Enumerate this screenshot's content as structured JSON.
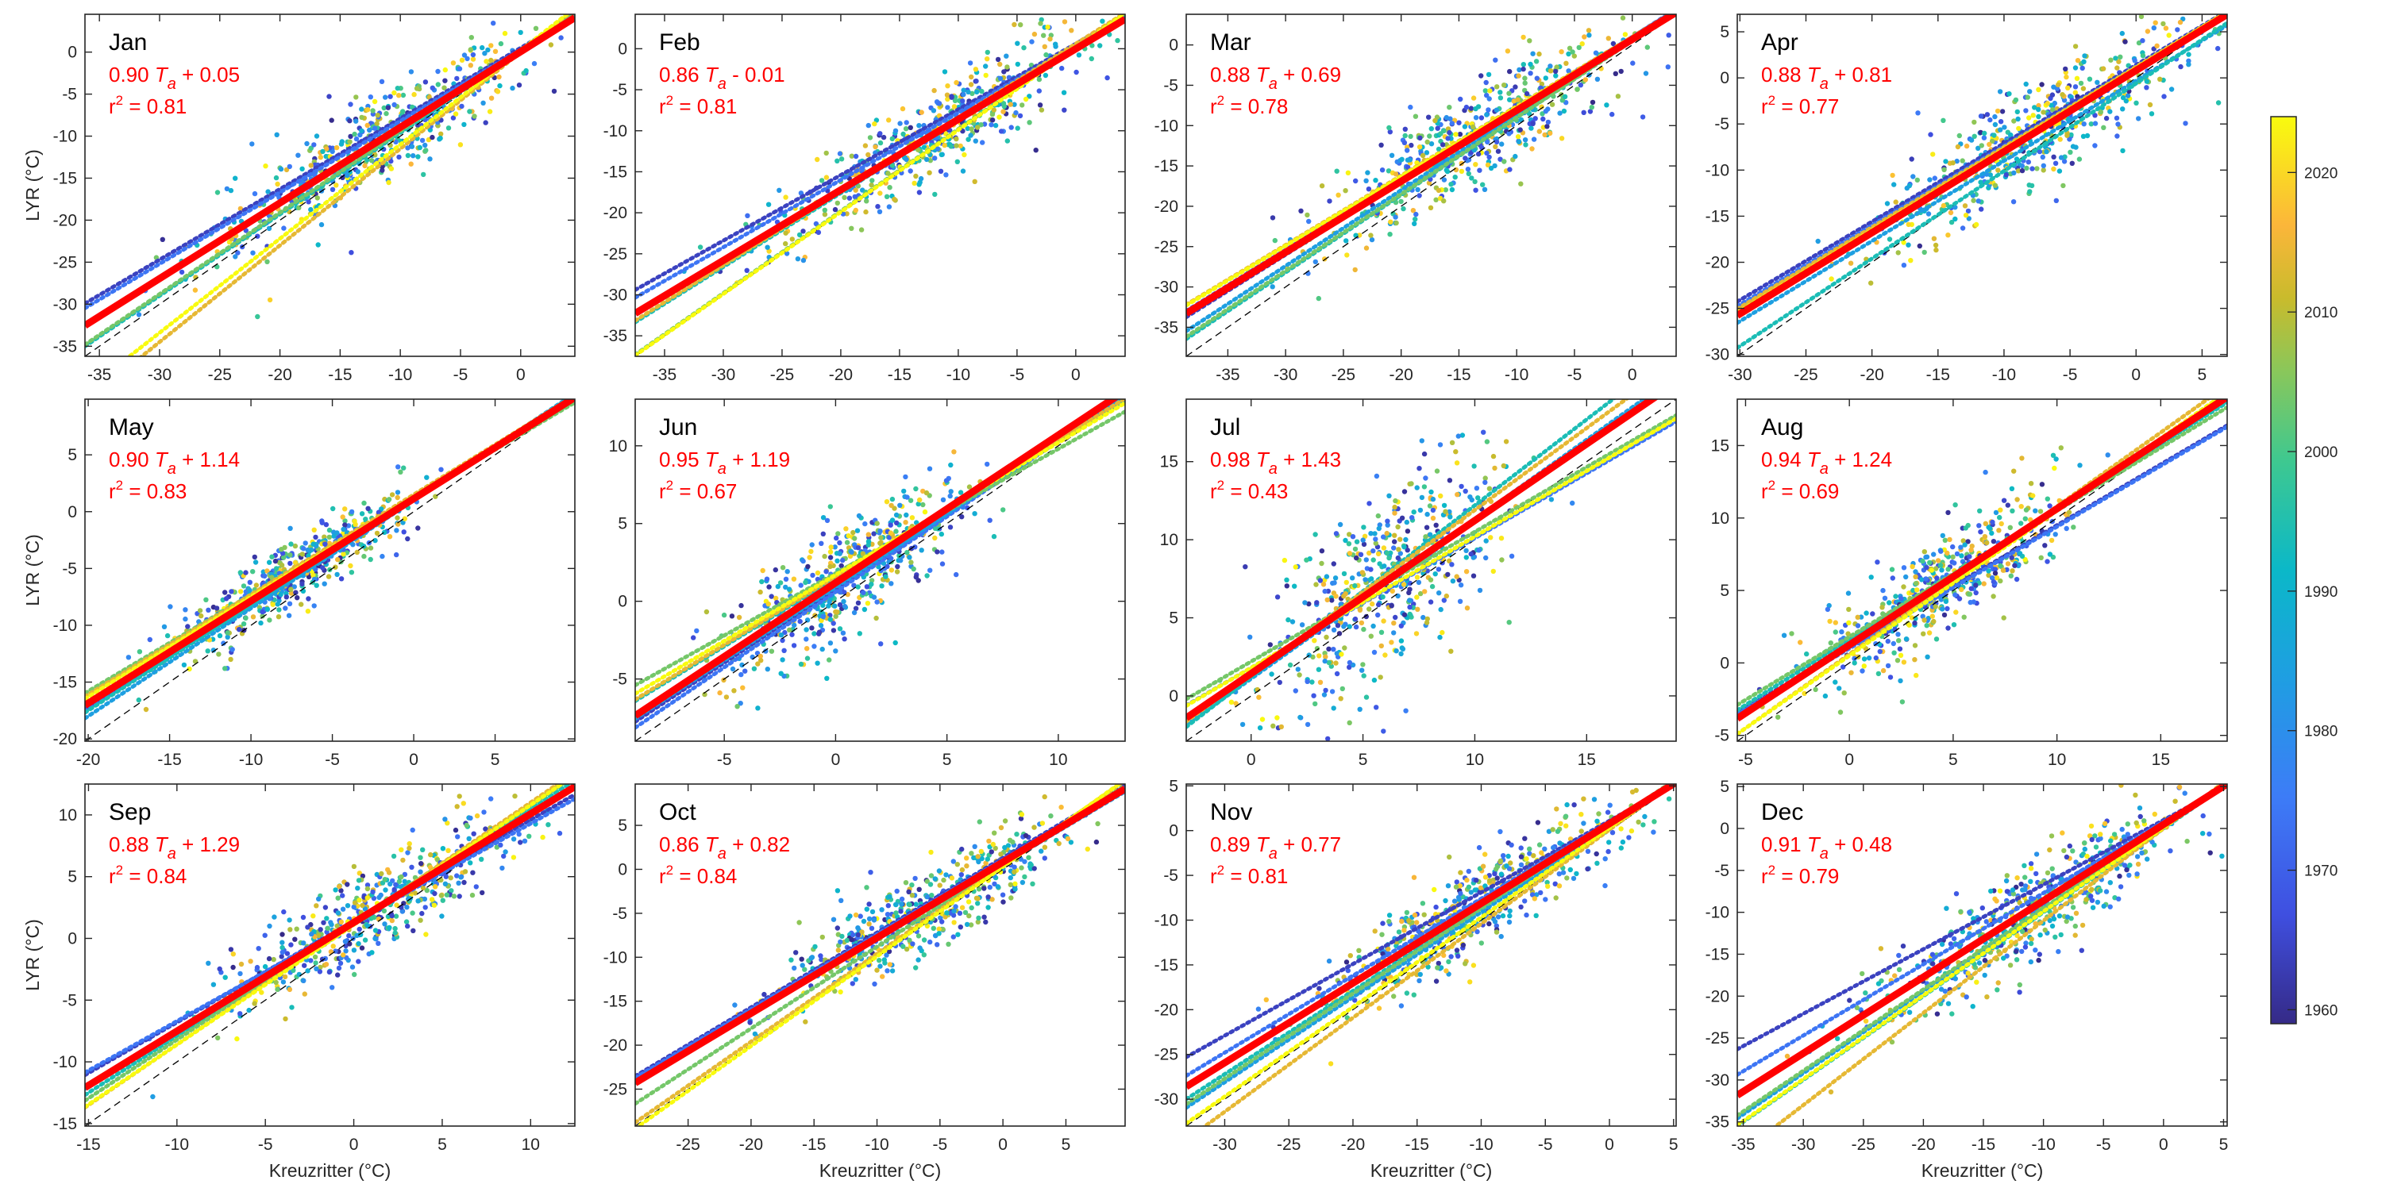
{
  "chart_data": {
    "type": "scatter",
    "description": "Monthly scatter of daily temperature at LYR vs Kreuzritter, colored by year, with overall linear fit (red), per-decade fits (dotted, colored), and 1:1 line (dashed black)",
    "xlabel": "Kreuzritter (°C)",
    "ylabel": "LYR (°C)",
    "colorbar": {
      "label": "",
      "range": [
        1959,
        2024
      ],
      "ticks": [
        1960,
        1970,
        1980,
        1990,
        2000,
        2010,
        2020
      ],
      "colormap": "parula"
    },
    "fit_color": "#ff0000",
    "one_to_one_line": "dashed black",
    "decades": [
      1960,
      1970,
      1980,
      1990,
      2000,
      2010,
      2020
    ],
    "panels": [
      {
        "month": "Jan",
        "slope": 0.9,
        "intercept": 0.05,
        "r2": 0.81,
        "eq": "0.90 T_a + 0.05",
        "sign": "+",
        "icpt_text": "0.05",
        "slope_text": "0.90",
        "r2_text": "0.81",
        "xlim": [
          -36.2,
          4.5
        ],
        "ylim": [
          -36.2,
          4.5
        ],
        "xticks": [
          -35,
          -30,
          -25,
          -20,
          -15,
          -10,
          -5,
          0
        ],
        "yticks": [
          -35,
          -30,
          -25,
          -20,
          -15,
          -10,
          -5,
          0
        ],
        "decadal_fits": [
          {
            "decade": 1960,
            "slope": 0.84,
            "intercept": 0.5
          },
          {
            "decade": 1970,
            "slope": 0.85,
            "intercept": 0.3
          },
          {
            "decade": 1980,
            "slope": 0.97,
            "intercept": 0.2
          },
          {
            "decade": 1990,
            "slope": 0.97,
            "intercept": 0.1
          },
          {
            "decade": 2000,
            "slope": 0.97,
            "intercept": 0.3
          },
          {
            "decade": 2010,
            "slope": 1.15,
            "intercept": 0.0
          },
          {
            "decade": 2020,
            "slope": 1.12,
            "intercept": 0.2
          }
        ]
      },
      {
        "month": "Feb",
        "slope": 0.86,
        "intercept": -0.01,
        "r2": 0.81,
        "sign": "-",
        "icpt_text": "0.01",
        "slope_text": "0.86",
        "r2_text": "0.81",
        "xlim": [
          -37.5,
          4.2
        ],
        "ylim": [
          -37.5,
          4.2
        ],
        "xticks": [
          -35,
          -30,
          -25,
          -20,
          -15,
          -10,
          -5,
          0
        ],
        "yticks": [
          -35,
          -30,
          -25,
          -20,
          -15,
          -10,
          -5,
          0
        ],
        "decadal_fits": [
          {
            "decade": 1960,
            "slope": 0.8,
            "intercept": 0.6
          },
          {
            "decade": 1970,
            "slope": 0.82,
            "intercept": 0.4
          },
          {
            "decade": 1980,
            "slope": 0.9,
            "intercept": 0.5
          },
          {
            "decade": 1990,
            "slope": 0.9,
            "intercept": 0.4
          },
          {
            "decade": 2000,
            "slope": 1.0,
            "intercept": 0.2
          },
          {
            "decade": 2010,
            "slope": 0.9,
            "intercept": 0.6
          },
          {
            "decade": 2020,
            "slope": 1.0,
            "intercept": 0.1
          }
        ]
      },
      {
        "month": "Mar",
        "slope": 0.88,
        "intercept": 0.69,
        "r2": 0.78,
        "sign": "+",
        "icpt_text": "0.69",
        "slope_text": "0.88",
        "r2_text": "0.78",
        "xlim": [
          -38.6,
          3.8
        ],
        "ylim": [
          -38.6,
          3.8
        ],
        "xticks": [
          -35,
          -30,
          -25,
          -20,
          -15,
          -10,
          -5,
          0
        ],
        "yticks": [
          -35,
          -30,
          -25,
          -20,
          -15,
          -10,
          -5,
          0
        ],
        "decadal_fits": [
          {
            "decade": 1960,
            "slope": 0.9,
            "intercept": 1.0
          },
          {
            "decade": 1970,
            "slope": 0.88,
            "intercept": 1.0
          },
          {
            "decade": 1980,
            "slope": 0.94,
            "intercept": 0.8
          },
          {
            "decade": 1990,
            "slope": 0.96,
            "intercept": 0.6
          },
          {
            "decade": 2000,
            "slope": 0.95,
            "intercept": 0.5
          },
          {
            "decade": 2010,
            "slope": 0.86,
            "intercept": 1.0
          },
          {
            "decade": 2020,
            "slope": 0.86,
            "intercept": 0.9
          }
        ]
      },
      {
        "month": "Apr",
        "slope": 0.88,
        "intercept": 0.81,
        "r2": 0.77,
        "sign": "+",
        "icpt_text": "0.81",
        "slope_text": "0.88",
        "r2_text": "0.77",
        "xlim": [
          -30.2,
          6.9
        ],
        "ylim": [
          -30.2,
          6.9
        ],
        "xticks": [
          -30,
          -25,
          -20,
          -15,
          -10,
          -5,
          0,
          5
        ],
        "yticks": [
          -30,
          -25,
          -20,
          -15,
          -10,
          -5,
          0,
          5
        ],
        "decadal_fits": [
          {
            "decade": 1960,
            "slope": 0.85,
            "intercept": 1.4
          },
          {
            "decade": 1970,
            "slope": 0.86,
            "intercept": 1.2
          },
          {
            "decade": 1980,
            "slope": 0.87,
            "intercept": -0.3
          },
          {
            "decade": 1990,
            "slope": 0.95,
            "intercept": -0.6
          },
          {
            "decade": 2000,
            "slope": 0.86,
            "intercept": 0.8
          },
          {
            "decade": 2010,
            "slope": 0.87,
            "intercept": 1.2
          },
          {
            "decade": 2020,
            "slope": 0.88,
            "intercept": 1.1
          }
        ]
      },
      {
        "month": "May",
        "slope": 0.9,
        "intercept": 1.14,
        "r2": 0.83,
        "sign": "+",
        "icpt_text": "1.14",
        "slope_text": "0.90",
        "r2_text": "0.83",
        "xlim": [
          -20.2,
          9.9
        ],
        "ylim": [
          -20.2,
          9.9
        ],
        "xticks": [
          -20,
          -15,
          -10,
          -5,
          0,
          5
        ],
        "yticks": [
          -20,
          -15,
          -10,
          -5,
          0,
          5
        ],
        "decadal_fits": [
          {
            "decade": 1960,
            "slope": 0.91,
            "intercept": 1.0
          },
          {
            "decade": 1970,
            "slope": 0.92,
            "intercept": 1.0
          },
          {
            "decade": 1980,
            "slope": 0.95,
            "intercept": 1.0
          },
          {
            "decade": 1990,
            "slope": 0.93,
            "intercept": 1.1
          },
          {
            "decade": 2000,
            "slope": 0.85,
            "intercept": 1.2
          },
          {
            "decade": 2010,
            "slope": 0.88,
            "intercept": 1.5
          },
          {
            "decade": 2020,
            "slope": 0.88,
            "intercept": 1.3
          }
        ]
      },
      {
        "month": "Jun",
        "slope": 0.95,
        "intercept": 1.19,
        "r2": 0.67,
        "sign": "+",
        "icpt_text": "1.19",
        "slope_text": "0.95",
        "r2_text": "0.67",
        "xlim": [
          -9.0,
          13.0
        ],
        "ylim": [
          -9.0,
          13.0
        ],
        "xticks": [
          -5,
          0,
          5,
          10
        ],
        "yticks": [
          -5,
          0,
          5,
          10
        ],
        "decadal_fits": [
          {
            "decade": 1960,
            "slope": 0.95,
            "intercept": 0.8
          },
          {
            "decade": 1970,
            "slope": 0.97,
            "intercept": 0.6
          },
          {
            "decade": 1980,
            "slope": 0.94,
            "intercept": 0.9
          },
          {
            "decade": 1990,
            "slope": 0.88,
            "intercept": 1.5
          },
          {
            "decade": 2000,
            "slope": 0.8,
            "intercept": 1.8
          },
          {
            "decade": 2010,
            "slope": 0.88,
            "intercept": 1.6
          },
          {
            "decade": 2020,
            "slope": 0.85,
            "intercept": 1.7
          }
        ]
      },
      {
        "month": "Jul",
        "slope": 0.98,
        "intercept": 1.43,
        "r2": 0.43,
        "sign": "+",
        "icpt_text": "1.43",
        "slope_text": "0.98",
        "r2_text": "0.43",
        "xlim": [
          -2.9,
          19.0
        ],
        "ylim": [
          -2.9,
          19.0
        ],
        "xticks": [
          0,
          5,
          10,
          15
        ],
        "yticks": [
          0,
          5,
          10,
          15
        ],
        "decadal_fits": [
          {
            "decade": 1960,
            "slope": 0.97,
            "intercept": 1.5
          },
          {
            "decade": 1970,
            "slope": 0.83,
            "intercept": 1.8
          },
          {
            "decade": 1980,
            "slope": 1.02,
            "intercept": 1.1
          },
          {
            "decade": 1990,
            "slope": 1.1,
            "intercept": 1.2
          },
          {
            "decade": 2000,
            "slope": 0.83,
            "intercept": 2.2
          },
          {
            "decade": 2010,
            "slope": 1.05,
            "intercept": 1.4
          },
          {
            "decade": 2020,
            "slope": 0.84,
            "intercept": 1.8
          }
        ]
      },
      {
        "month": "Aug",
        "slope": 0.94,
        "intercept": 1.24,
        "r2": 0.69,
        "sign": "+",
        "icpt_text": "1.24",
        "slope_text": "0.94",
        "r2_text": "0.69",
        "xlim": [
          -5.4,
          18.2
        ],
        "ylim": [
          -5.4,
          18.2
        ],
        "xticks": [
          -5,
          0,
          5,
          10,
          15
        ],
        "yticks": [
          -5,
          0,
          5,
          10,
          15
        ],
        "decadal_fits": [
          {
            "decade": 1960,
            "slope": 0.84,
            "intercept": 1.1
          },
          {
            "decade": 1970,
            "slope": 0.84,
            "intercept": 1.0
          },
          {
            "decade": 1980,
            "slope": 0.93,
            "intercept": 1.3
          },
          {
            "decade": 1990,
            "slope": 0.9,
            "intercept": 1.6
          },
          {
            "decade": 2000,
            "slope": 0.87,
            "intercept": 1.8
          },
          {
            "decade": 2010,
            "slope": 1.02,
            "intercept": 0.6
          },
          {
            "decade": 2020,
            "slope": 1.0,
            "intercept": 0.5
          }
        ]
      },
      {
        "month": "Sep",
        "slope": 0.88,
        "intercept": 1.29,
        "r2": 0.84,
        "sign": "+",
        "icpt_text": "1.29",
        "slope_text": "0.88",
        "r2_text": "0.84",
        "xlim": [
          -15.2,
          12.5
        ],
        "ylim": [
          -15.2,
          12.5
        ],
        "xticks": [
          -15,
          -10,
          -5,
          0,
          5,
          10
        ],
        "yticks": [
          -15,
          -10,
          -5,
          0,
          5,
          10
        ],
        "decadal_fits": [
          {
            "decade": 1960,
            "slope": 0.82,
            "intercept": 1.4
          },
          {
            "decade": 1970,
            "slope": 0.8,
            "intercept": 1.3
          },
          {
            "decade": 1980,
            "slope": 0.88,
            "intercept": 1.2
          },
          {
            "decade": 1990,
            "slope": 0.92,
            "intercept": 1.3
          },
          {
            "decade": 2000,
            "slope": 0.95,
            "intercept": 1.3
          },
          {
            "decade": 2010,
            "slope": 0.98,
            "intercept": 1.2
          },
          {
            "decade": 2020,
            "slope": 0.97,
            "intercept": 1.1
          }
        ]
      },
      {
        "month": "Oct",
        "slope": 0.86,
        "intercept": 0.82,
        "r2": 0.84,
        "sign": "+",
        "icpt_text": "0.82",
        "slope_text": "0.86",
        "r2_text": "0.84",
        "xlim": [
          -29.2,
          9.7
        ],
        "ylim": [
          -29.2,
          9.7
        ],
        "xticks": [
          -25,
          -20,
          -15,
          -10,
          -5,
          0,
          5
        ],
        "yticks": [
          -25,
          -20,
          -15,
          -10,
          -5,
          0,
          5
        ],
        "decadal_fits": [
          {
            "decade": 1960,
            "slope": 0.85,
            "intercept": 1.3
          },
          {
            "decade": 1970,
            "slope": 0.85,
            "intercept": 1.1
          },
          {
            "decade": 1980,
            "slope": 0.85,
            "intercept": 0.6
          },
          {
            "decade": 1990,
            "slope": 0.86,
            "intercept": 0.8
          },
          {
            "decade": 2000,
            "slope": 0.93,
            "intercept": 0.5
          },
          {
            "decade": 2010,
            "slope": 1.0,
            "intercept": 0.4
          },
          {
            "decade": 2020,
            "slope": 1.02,
            "intercept": 0.3
          }
        ]
      },
      {
        "month": "Nov",
        "slope": 0.89,
        "intercept": 0.77,
        "r2": 0.81,
        "sign": "+",
        "icpt_text": "0.77",
        "slope_text": "0.89",
        "r2_text": "0.81",
        "xlim": [
          -33.0,
          5.2
        ],
        "ylim": [
          -33.0,
          5.2
        ],
        "xticks": [
          -30,
          -25,
          -20,
          -15,
          -10,
          -5,
          0,
          5
        ],
        "yticks": [
          -30,
          -25,
          -20,
          -15,
          -10,
          -5,
          0,
          5
        ],
        "decadal_fits": [
          {
            "decade": 1960,
            "slope": 0.8,
            "intercept": 1.1
          },
          {
            "decade": 1970,
            "slope": 0.86,
            "intercept": 1.0
          },
          {
            "decade": 1980,
            "slope": 0.95,
            "intercept": 0.4
          },
          {
            "decade": 1990,
            "slope": 0.93,
            "intercept": 0.7
          },
          {
            "decade": 2000,
            "slope": 0.95,
            "intercept": 0.8
          },
          {
            "decade": 2010,
            "slope": 1.05,
            "intercept": 0.1
          },
          {
            "decade": 2020,
            "slope": 1.0,
            "intercept": 0.3
          }
        ]
      },
      {
        "month": "Dec",
        "slope": 0.91,
        "intercept": 0.48,
        "r2": 0.79,
        "sign": "+",
        "icpt_text": "0.48",
        "slope_text": "0.91",
        "r2_text": "0.79",
        "xlim": [
          -35.5,
          5.3
        ],
        "ylim": [
          -35.5,
          5.3
        ],
        "xticks": [
          -35,
          -30,
          -25,
          -20,
          -15,
          -10,
          -5,
          0,
          5
        ],
        "yticks": [
          -35,
          -30,
          -25,
          -20,
          -15,
          -10,
          -5,
          0,
          5
        ],
        "decadal_fits": [
          {
            "decade": 1960,
            "slope": 0.77,
            "intercept": 1.0
          },
          {
            "decade": 1970,
            "slope": 0.85,
            "intercept": 0.8
          },
          {
            "decade": 1980,
            "slope": 0.98,
            "intercept": 0.2
          },
          {
            "decade": 1990,
            "slope": 1.0,
            "intercept": 0.0
          },
          {
            "decade": 2000,
            "slope": 0.97,
            "intercept": 0.2
          },
          {
            "decade": 2010,
            "slope": 1.1,
            "intercept": 0.0
          },
          {
            "decade": 2020,
            "slope": 1.0,
            "intercept": 0.1
          }
        ]
      }
    ]
  }
}
